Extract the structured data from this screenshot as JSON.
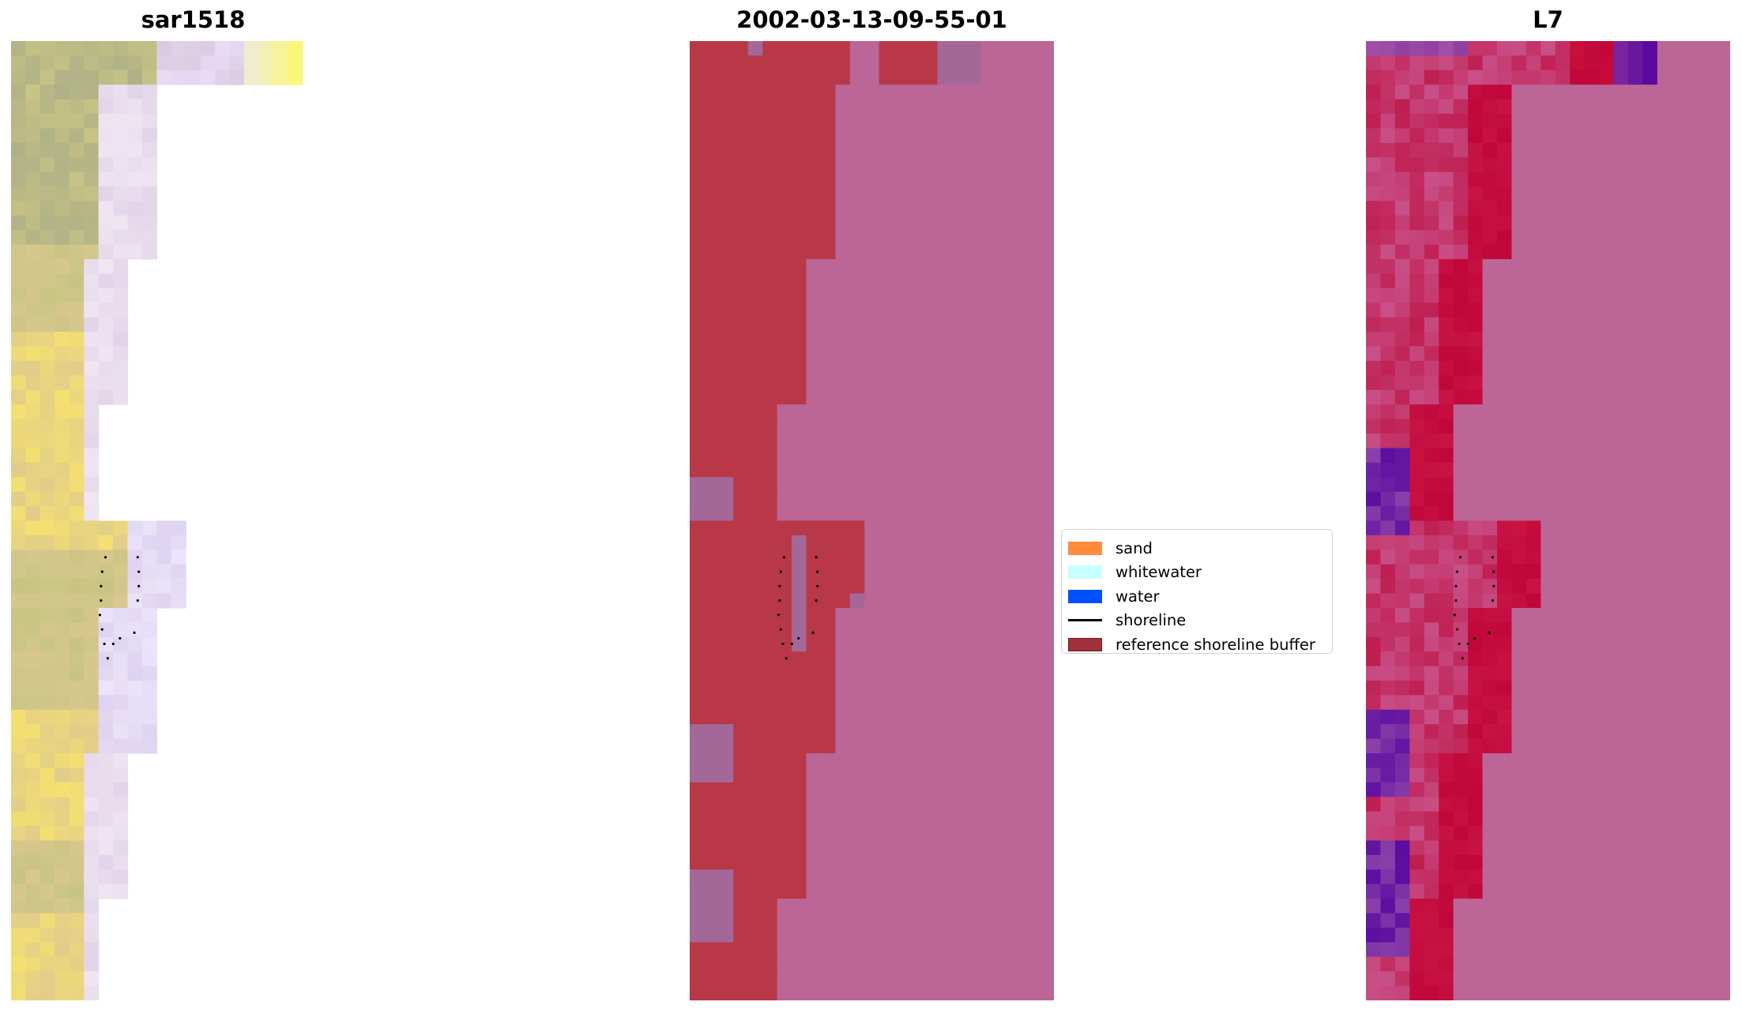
{
  "chart_data": {
    "type": "image",
    "panels": [
      {
        "title": "sar1518",
        "content": "RGB satellite image"
      },
      {
        "title": "2002-03-13-09-55-01",
        "content": "classified image with reference shoreline buffer"
      },
      {
        "title": "L7",
        "content": "index image"
      }
    ],
    "legend": {
      "placement": "center",
      "entries": [
        {
          "label": "sand",
          "kind": "patch",
          "color": "#ff8c3c"
        },
        {
          "label": "whitewater",
          "kind": "patch",
          "color": "#c8ffff"
        },
        {
          "label": "water",
          "kind": "patch",
          "color": "#0050ff"
        },
        {
          "label": "shoreline",
          "kind": "line",
          "color": "#000000"
        },
        {
          "label": "reference shoreline buffer",
          "kind": "patch",
          "color": "#a0303a"
        }
      ]
    },
    "colors": {
      "buffer": "#b83848",
      "background": "#bb6696",
      "mixed": "#a46898",
      "index_red": "#c0063a",
      "index_purple": "#5a0aa0"
    }
  }
}
